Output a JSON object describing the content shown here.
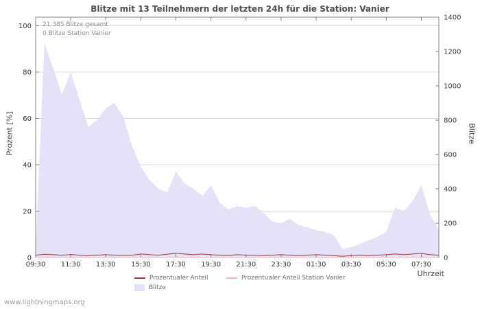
{
  "title": "Blitze mit 13 Teilnehmern der letzten 24h für die Station: Vanier",
  "annotations": {
    "total": "21.385 Blitze gesamt",
    "station": "0 Blitze Station Vanier"
  },
  "watermark": "www.lightningmaps.org",
  "axes": {
    "left_label": "Prozent  [%]",
    "right_label": "Blitze",
    "x_label": "Uhrzeit",
    "left_ticks": [
      0,
      20,
      40,
      60,
      80,
      100
    ],
    "right_ticks": [
      0,
      200,
      400,
      600,
      800,
      1000,
      1200,
      1400
    ],
    "x_ticks": [
      "09:30",
      "11:30",
      "13:30",
      "15:30",
      "17:30",
      "19:30",
      "21:30",
      "23:30",
      "01:30",
      "03:30",
      "05:30",
      "07:30"
    ]
  },
  "legend": [
    {
      "label": "Prozentualer Anteil",
      "type": "line",
      "color": "#aa3333"
    },
    {
      "label": "Prozentualer Anteil Station Vanier",
      "type": "line",
      "color": "#f5b8b8"
    },
    {
      "label": "Blitze",
      "type": "area",
      "color": "#e4e1f8"
    }
  ],
  "colors": {
    "grid": "#dcdcdc",
    "border": "#808080",
    "tick_text": "#333333"
  },
  "chart_data": {
    "type": "area",
    "title": "Blitze mit 13 Teilnehmern der letzten 24h für die Station: Vanier",
    "xlabel": "Uhrzeit",
    "ylabel_left": "Prozent [%]",
    "ylabel_right": "Blitze",
    "left_range": [
      0,
      100
    ],
    "right_range": [
      0,
      1400
    ],
    "grid": true,
    "legend_position": "bottom",
    "x": [
      "09:30",
      "10:00",
      "10:30",
      "11:00",
      "11:30",
      "12:00",
      "12:30",
      "13:00",
      "13:30",
      "14:00",
      "14:30",
      "15:00",
      "15:30",
      "16:00",
      "16:30",
      "17:00",
      "17:30",
      "18:00",
      "18:30",
      "19:00",
      "19:30",
      "20:00",
      "20:30",
      "21:00",
      "21:30",
      "22:00",
      "22:30",
      "23:00",
      "23:30",
      "00:00",
      "00:30",
      "01:00",
      "01:30",
      "02:00",
      "02:30",
      "03:00",
      "03:30",
      "04:00",
      "04:30",
      "05:00",
      "05:30",
      "06:00",
      "06:30",
      "07:00",
      "07:30",
      "08:00",
      "08:30"
    ],
    "series": [
      {
        "name": "Blitze",
        "axis": "right",
        "type": "area",
        "color": "#e4e1f8",
        "values": [
          50,
          1250,
          1100,
          950,
          1080,
          920,
          760,
          800,
          870,
          900,
          820,
          650,
          530,
          450,
          400,
          380,
          500,
          430,
          400,
          360,
          420,
          320,
          280,
          300,
          290,
          300,
          260,
          210,
          200,
          225,
          190,
          175,
          160,
          150,
          130,
          50,
          60,
          80,
          100,
          120,
          150,
          290,
          270,
          330,
          420,
          250,
          160
        ]
      },
      {
        "name": "Prozentualer Anteil",
        "axis": "left",
        "type": "line",
        "color": "#aa3333",
        "values": [
          1,
          1.4,
          1.2,
          1,
          1.3,
          1,
          0.8,
          1,
          1.2,
          1,
          0.9,
          1,
          1.5,
          1.2,
          1,
          1.4,
          1.8,
          1.5,
          1.2,
          1.5,
          1.2,
          1,
          0.8,
          1.2,
          1,
          1,
          0.8,
          1,
          1.2,
          1,
          0.8,
          1,
          1.2,
          1,
          0.8,
          0.5,
          0.8,
          1,
          0.8,
          1,
          1.2,
          1.5,
          1.2,
          1.5,
          1.8,
          1.2,
          1
        ]
      },
      {
        "name": "Prozentualer Anteil Station Vanier",
        "axis": "left",
        "type": "line",
        "color": "#f5b8b8",
        "values": [
          0,
          0,
          0,
          0,
          0,
          0,
          0,
          0,
          0,
          0,
          0,
          0,
          0,
          0,
          0,
          0,
          0,
          0,
          0,
          0,
          0,
          0,
          0,
          0,
          0,
          0,
          0,
          0,
          0,
          0,
          0,
          0,
          0,
          0,
          0,
          0,
          0,
          0,
          0,
          0,
          0,
          0,
          0,
          0,
          0,
          0,
          0
        ]
      }
    ]
  }
}
